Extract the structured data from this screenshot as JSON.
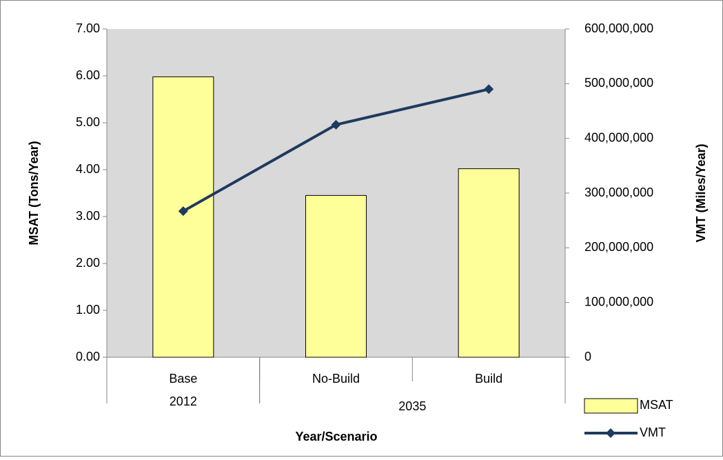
{
  "chart_data": {
    "type": "bar",
    "categories": [
      "Base",
      "No-Build",
      "Build"
    ],
    "category_groups": [
      {
        "label": "2012",
        "count": 1
      },
      {
        "label": "2035",
        "count": 2
      }
    ],
    "series": [
      {
        "name": "MSAT",
        "type": "bar",
        "color": "#ffff99",
        "values": [
          5.98,
          3.45,
          4.02
        ]
      },
      {
        "name": "VMT",
        "type": "line",
        "axis": "y2",
        "color": "#1f3a5f",
        "values": [
          267000000,
          425000000,
          490000000
        ]
      }
    ],
    "x_label": "Year/Scenario",
    "y_label": "MSAT (Tons/Year)",
    "y2_label": "VMT (Miles/Year)",
    "ylim": [
      0,
      7
    ],
    "yticks": [
      {
        "value": 0,
        "label": "0.00"
      },
      {
        "value": 1,
        "label": "1.00"
      },
      {
        "value": 2,
        "label": "2.00"
      },
      {
        "value": 3,
        "label": "3.00"
      },
      {
        "value": 4,
        "label": "4.00"
      },
      {
        "value": 5,
        "label": "5.00"
      },
      {
        "value": 6,
        "label": "6.00"
      },
      {
        "value": 7,
        "label": "7.00"
      }
    ],
    "y2lim": [
      0,
      600000000
    ],
    "y2ticks": [
      0,
      {
        "value": 100000000,
        "label": "100,000,000"
      },
      {
        "value": 200000000,
        "label": "200,000,000"
      },
      {
        "value": 300000000,
        "label": "300,000,000"
      },
      {
        "value": 400000000,
        "label": "400,000,000"
      },
      {
        "value": 500000000,
        "label": "500,000,000"
      },
      {
        "value": 600000000,
        "label": "600,000,000"
      }
    ],
    "plot_background": "#d9d9d9",
    "legend": "bottom-right"
  }
}
